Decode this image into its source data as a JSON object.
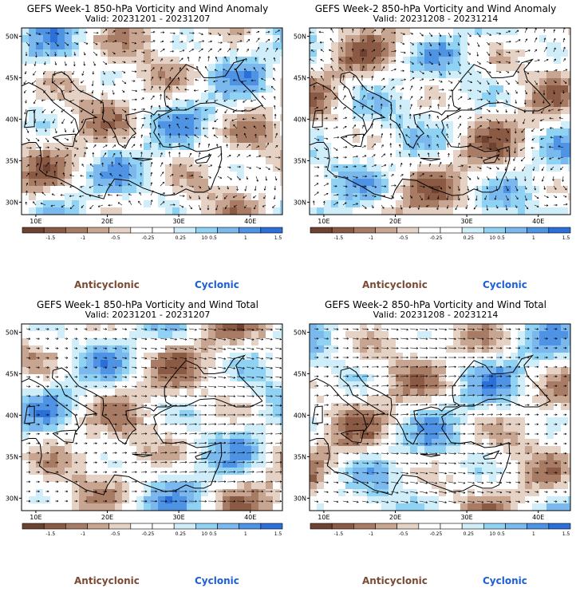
{
  "colors": {
    "anticyclonic": "#7a4a34",
    "cyclonic": "#1d5fd6",
    "scale": [
      "#6e4231",
      "#8a5a44",
      "#a87b64",
      "#c8a590",
      "#e6d2c4",
      "#ffffff",
      "#ffffff",
      "#cfeefa",
      "#8fd2f4",
      "#7ab8ee",
      "#4e93e4",
      "#2c6fd9"
    ]
  },
  "colorbar": {
    "labels": [
      "-1.5",
      "-1",
      "-0.5",
      "-0.25",
      "0.25",
      "0.5",
      "1",
      "1.5"
    ],
    "mid_label": "10"
  },
  "chart_data": [
    {
      "type": "heatmap",
      "title": "GEFS Week-1 850-hPa Vorticity and Wind Anomaly",
      "subtitle": "Valid: 20231201 - 20231207",
      "x_ticks": [
        "10E",
        "20E",
        "30E",
        "40E"
      ],
      "y_ticks": [
        "50N",
        "45N",
        "40N",
        "35N",
        "30N"
      ],
      "legend": {
        "left": "Anticyclonic",
        "right": "Cyclonic"
      }
    },
    {
      "type": "heatmap",
      "title": "GEFS Week-2 850-hPa Vorticity and Wind Anomaly",
      "subtitle": "Valid: 20231208 - 20231214",
      "x_ticks": [
        "10E",
        "20E",
        "30E",
        "40E"
      ],
      "y_ticks": [
        "50N",
        "45N",
        "40N",
        "35N",
        "30N"
      ],
      "legend": {
        "left": "Anticyclonic",
        "right": "Cyclonic"
      }
    },
    {
      "type": "heatmap",
      "title": "GEFS Week-1 850-hPa Vorticity and Wind Total",
      "subtitle": "Valid: 20231201 - 20231207",
      "x_ticks": [
        "10E",
        "20E",
        "30E",
        "40E"
      ],
      "y_ticks": [
        "50N",
        "45N",
        "40N",
        "35N",
        "30N"
      ],
      "legend": {
        "left": "Anticyclonic",
        "right": "Cyclonic"
      }
    },
    {
      "type": "heatmap",
      "title": "GEFS Week-2 850-hPa Vorticity and Wind Total",
      "subtitle": "Valid: 20231208 - 20231214",
      "x_ticks": [
        "10E",
        "20E",
        "30E",
        "40E"
      ],
      "y_ticks": [
        "50N",
        "45N",
        "40N",
        "35N",
        "30N"
      ],
      "legend": {
        "left": "Anticyclonic",
        "right": "Cyclonic"
      }
    }
  ]
}
